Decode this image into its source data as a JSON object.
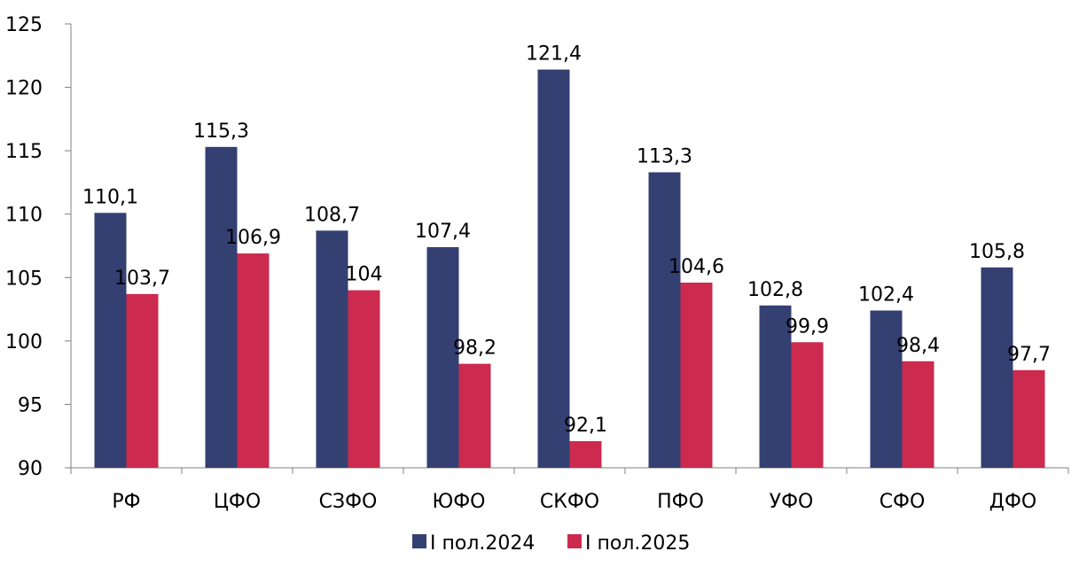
{
  "chart_data": {
    "type": "bar",
    "categories": [
      "РФ",
      "ЦФО",
      "СЗФО",
      "ЮФО",
      "СКФО",
      "ПФО",
      "УФО",
      "СФО",
      "ДФО"
    ],
    "series": [
      {
        "name": "I пол.2024",
        "color": "#343f72",
        "values": [
          110.1,
          115.3,
          108.7,
          107.4,
          121.4,
          113.3,
          102.8,
          102.4,
          105.8
        ],
        "labels": [
          "110,1",
          "115,3",
          "108,7",
          "107,4",
          "121,4",
          "113,3",
          "102,8",
          "102,4",
          "105,8"
        ]
      },
      {
        "name": "I пол.2025",
        "color": "#cc2a4e",
        "values": [
          103.7,
          106.9,
          104,
          98.2,
          92.1,
          104.6,
          99.9,
          98.4,
          97.7
        ],
        "labels": [
          "103,7",
          "106,9",
          "104",
          "98,2",
          "92,1",
          "104,6",
          "99,9",
          "98,4",
          "97,7"
        ]
      }
    ],
    "ylim": [
      90,
      125
    ],
    "yticks": [
      90,
      95,
      100,
      105,
      110,
      115,
      120,
      125
    ],
    "ytick_labels": [
      "90",
      "95",
      "100",
      "105",
      "110",
      "115",
      "120",
      "125"
    ],
    "grid": false,
    "legend_position": "bottom-center",
    "axis_color": "#7f7f7f"
  }
}
